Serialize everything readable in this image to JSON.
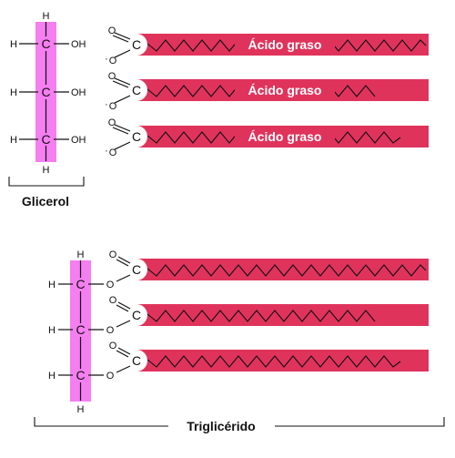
{
  "glycerol": {
    "name": "Glicerol",
    "backbone_color": "#f57ef0",
    "atoms": {
      "carbon": "C",
      "hydrogen": "H",
      "hydroxyl": "OH"
    }
  },
  "fatty_acids": {
    "color": "#e0335c",
    "label": "Ácido graso",
    "count": 3,
    "atoms": {
      "oxygen": "O",
      "carbon": "C",
      "negative_oxygen": "O"
    }
  },
  "triglyceride": {
    "name": "Triglicérido",
    "backbone_color": "#f57ef0",
    "chain_color": "#e0335c",
    "atoms": {
      "carbon": "C",
      "hydrogen": "H",
      "oxygen": "O"
    }
  }
}
